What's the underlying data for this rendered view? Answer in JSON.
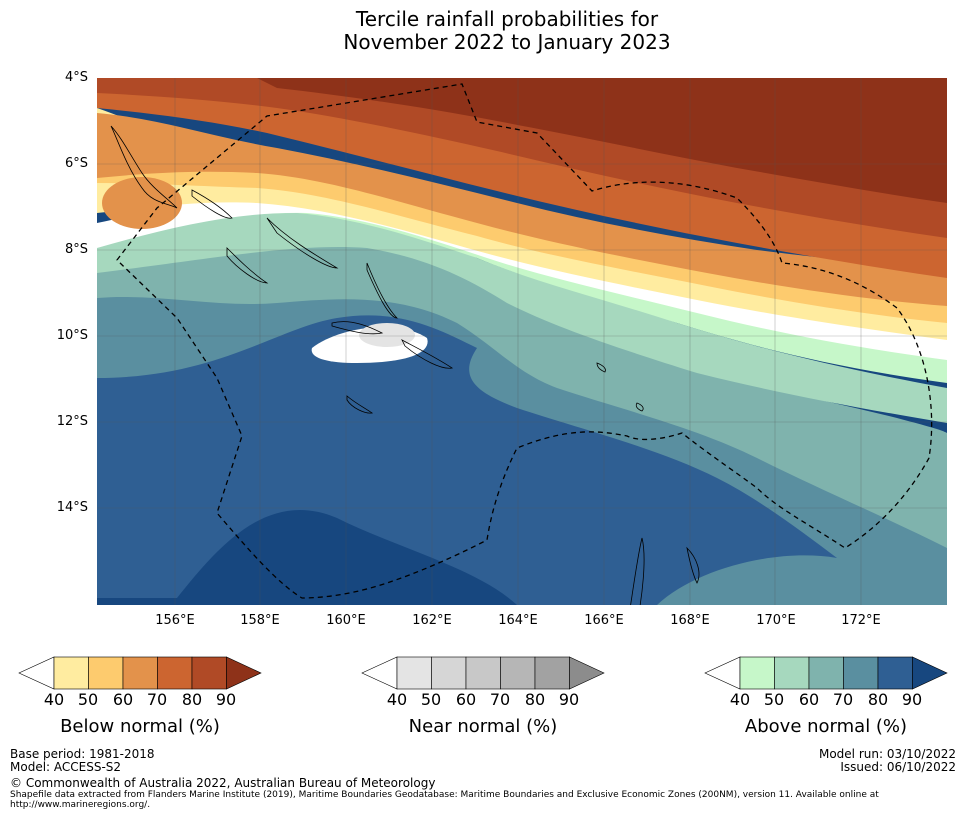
{
  "title": {
    "line1": "Tercile rainfall probabilities for",
    "line2": "November 2022 to January 2023"
  },
  "map": {
    "lat_labels": [
      "4°S",
      "6°S",
      "8°S",
      "10°S",
      "12°S",
      "14°S"
    ],
    "lon_labels": [
      "156°E",
      "158°E",
      "160°E",
      "162°E",
      "164°E",
      "166°E",
      "168°E",
      "170°E",
      "172°E"
    ]
  },
  "legend": {
    "below": {
      "label": "Below normal (%)",
      "ticks": [
        "40",
        "50",
        "60",
        "70",
        "80",
        "90"
      ],
      "colors": [
        "#ffffff",
        "#ffeca0",
        "#fdcb6e",
        "#e3924b",
        "#cc6530",
        "#b04a26",
        "#8e3219"
      ]
    },
    "near": {
      "label": "Near normal (%)",
      "ticks": [
        "40",
        "50",
        "60",
        "70",
        "80",
        "90"
      ],
      "colors": [
        "#ffffff",
        "#e4e4e4",
        "#d6d6d6",
        "#c8c8c8",
        "#b6b6b6",
        "#a2a2a2",
        "#8c8c8c"
      ]
    },
    "above": {
      "label": "Above normal (%)",
      "ticks": [
        "40",
        "50",
        "60",
        "70",
        "80",
        "90"
      ],
      "colors": [
        "#ffffff",
        "#c6f7c9",
        "#a6d8be",
        "#7fb3ad",
        "#5a8fa0",
        "#2f5f93",
        "#17477f"
      ]
    }
  },
  "footer": {
    "base_period": "Base period: 1981-2018",
    "model": "Model: ACCESS-S2",
    "model_run": "Model run: 03/10/2022",
    "issued": "Issued: 06/10/2022",
    "copyright": "© Commonwealth of Australia 2022, Australian Bureau of Meteorology",
    "shapefile_line1": "Shapefile data extracted from Flanders Marine Institute (2019), Maritime Boundaries Geodatabase: Maritime Boundaries and Exclusive Economic Zones (200NM), version 11. Available online at",
    "shapefile_line2": "http://www.marineregions.org/."
  }
}
